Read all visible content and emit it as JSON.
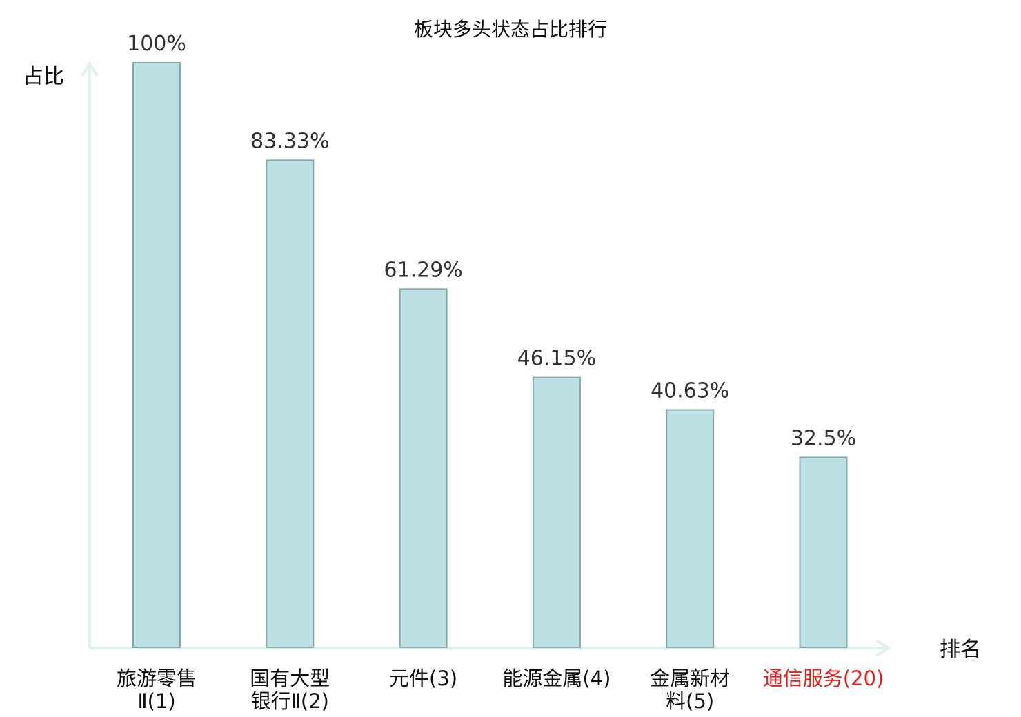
{
  "chart_data": {
    "type": "bar",
    "title": "板块多头状态占比排行",
    "xlabel": "排名",
    "ylabel": "占比",
    "ylim": [
      0,
      100
    ],
    "grid": false,
    "legend": "none",
    "categories": [
      {
        "name_lines": [
          "旅游零售",
          "Ⅱ"
        ],
        "rank": "(1)",
        "highlight": false
      },
      {
        "name_lines": [
          "国有大型",
          "银行Ⅱ"
        ],
        "rank": "(2)",
        "highlight": false
      },
      {
        "name_lines": [
          "元件"
        ],
        "rank": "(3)",
        "highlight": false
      },
      {
        "name_lines": [
          "能源金属"
        ],
        "rank": "(4)",
        "highlight": false
      },
      {
        "name_lines": [
          "金属新材",
          "料"
        ],
        "rank": "(5)",
        "highlight": false
      },
      {
        "name_lines": [
          "通信服务"
        ],
        "rank": "(20)",
        "highlight": true
      }
    ],
    "values": [
      100,
      83.33,
      61.29,
      46.15,
      40.63,
      32.5
    ],
    "value_labels": [
      "100%",
      "83.33%",
      "61.29%",
      "46.15%",
      "40.63%",
      "32.5%"
    ],
    "colors": {
      "bar_fill": "#bde0e3",
      "bar_stroke": "#84a8ab",
      "axis": "#dff2ef",
      "label": "#111111",
      "highlight": "#e0201c"
    }
  }
}
